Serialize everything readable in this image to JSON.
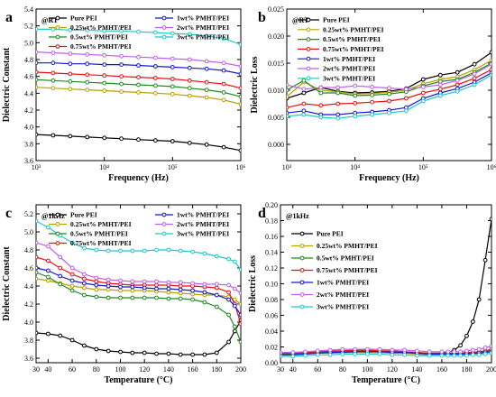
{
  "colors": {
    "pure": "#000000",
    "w025": "#b8a000",
    "w05": "#1f8a1f",
    "w075": "#e81010",
    "w1": "#1515d6",
    "w2": "#c060e8",
    "w3": "#20c8c8"
  },
  "chart_data": [
    {
      "panel": "a",
      "type": "line",
      "condition": "@RT",
      "xlabel": "Frequency (Hz)",
      "ylabel": "Dielectric Constant",
      "xscale": "log",
      "xlim": [
        1000,
        1000000
      ],
      "ylim": [
        3.6,
        5.4
      ],
      "xticks": [
        1000,
        10000,
        100000,
        1000000
      ],
      "xtick_labels": [
        "10³",
        "10⁴",
        "10⁵",
        "10⁶"
      ],
      "yticks": [
        3.6,
        3.8,
        4.0,
        4.2,
        4.4,
        4.6,
        4.8,
        5.0,
        5.2,
        5.4
      ],
      "ytick_labels": [
        "3.6",
        "3.8",
        "4.0",
        "4.2",
        "4.4",
        "4.6",
        "4.8",
        "5.0",
        "5.2",
        "5.4"
      ],
      "legend": "top, two columns",
      "grid": false,
      "x": [
        1000,
        1778,
        3162,
        5623,
        10000,
        17783,
        31623,
        56234,
        100000,
        177828,
        316228,
        562341,
        1000000
      ],
      "series": [
        {
          "name": "Pure PEI",
          "color_key": "pure",
          "values": [
            3.91,
            3.9,
            3.89,
            3.88,
            3.87,
            3.86,
            3.85,
            3.84,
            3.83,
            3.81,
            3.79,
            3.76,
            3.72
          ]
        },
        {
          "name": "0.25wt% PMHT/PEI",
          "color_key": "w025",
          "values": [
            4.47,
            4.46,
            4.45,
            4.44,
            4.43,
            4.42,
            4.41,
            4.4,
            4.39,
            4.37,
            4.35,
            4.32,
            4.27
          ]
        },
        {
          "name": "0.5wt% PMHT/PEI",
          "color_key": "w05",
          "values": [
            4.56,
            4.55,
            4.54,
            4.53,
            4.52,
            4.51,
            4.5,
            4.49,
            4.48,
            4.46,
            4.44,
            4.41,
            4.36
          ]
        },
        {
          "name": "0.75wt% PMHT/PEI",
          "color_key": "w075",
          "values": [
            4.65,
            4.64,
            4.63,
            4.62,
            4.61,
            4.6,
            4.59,
            4.58,
            4.57,
            4.55,
            4.53,
            4.51,
            4.46
          ]
        },
        {
          "name": "1wt% PMHT/PEI",
          "color_key": "w1",
          "values": [
            4.76,
            4.76,
            4.75,
            4.75,
            4.74,
            4.74,
            4.73,
            4.72,
            4.71,
            4.7,
            4.69,
            4.67,
            4.63
          ]
        },
        {
          "name": "2wt% PMHT/PEI",
          "color_key": "w2",
          "values": [
            4.89,
            4.88,
            4.87,
            4.86,
            4.85,
            4.84,
            4.83,
            4.82,
            4.81,
            4.8,
            4.78,
            4.76,
            4.72
          ]
        },
        {
          "name": "3wt% PMHT/PEI",
          "color_key": "w3",
          "values": [
            5.16,
            5.16,
            5.15,
            5.15,
            5.14,
            5.14,
            5.13,
            5.12,
            5.11,
            5.1,
            5.08,
            5.05,
            4.98
          ]
        }
      ]
    },
    {
      "panel": "b",
      "type": "line",
      "condition": "@RT",
      "xlabel": "Frequency (Hz)",
      "ylabel": "Dielectric Loss",
      "xscale": "log",
      "xlim": [
        1000,
        1000000
      ],
      "ylim": [
        -0.003,
        0.025
      ],
      "xticks": [
        1000,
        10000,
        100000,
        1000000
      ],
      "xtick_labels": [
        "10³",
        "10⁴",
        "10⁵",
        "10⁶"
      ],
      "yticks": [
        0,
        0.005,
        0.01,
        0.015,
        0.02,
        0.025
      ],
      "ytick_labels": [
        "0.000",
        "0.005",
        "0.010",
        "0.015",
        "0.020",
        "0.025"
      ],
      "legend": "top, one column",
      "grid": false,
      "x": [
        1000,
        1778,
        3162,
        5623,
        10000,
        17783,
        31623,
        56234,
        100000,
        177828,
        316228,
        562341,
        1000000
      ],
      "series": [
        {
          "name": "Pure PEI",
          "color_key": "pure",
          "values": [
            0.0085,
            0.0095,
            0.0105,
            0.0098,
            0.0095,
            0.0096,
            0.0098,
            0.0103,
            0.012,
            0.0128,
            0.0133,
            0.0148,
            0.017
          ]
        },
        {
          "name": "0.25wt% PMHT/PEI",
          "color_key": "w025",
          "values": [
            0.0088,
            0.0115,
            0.01,
            0.0097,
            0.0093,
            0.0094,
            0.0096,
            0.01,
            0.0112,
            0.012,
            0.0125,
            0.0138,
            0.0155
          ]
        },
        {
          "name": "0.5wt% PMHT/PEI",
          "color_key": "w05",
          "values": [
            0.01,
            0.0118,
            0.0095,
            0.0095,
            0.009,
            0.0091,
            0.0093,
            0.0097,
            0.0108,
            0.0116,
            0.012,
            0.0133,
            0.015
          ]
        },
        {
          "name": "0.75wt% PMHT/PEI",
          "color_key": "w075",
          "values": [
            0.0068,
            0.0075,
            0.0072,
            0.0075,
            0.0076,
            0.0078,
            0.008,
            0.0085,
            0.0095,
            0.0102,
            0.011,
            0.0122,
            0.0138
          ]
        },
        {
          "name": "1wt% PMHT/PEI",
          "color_key": "w1",
          "values": [
            0.0058,
            0.0062,
            0.0055,
            0.0055,
            0.0058,
            0.006,
            0.0063,
            0.0068,
            0.0085,
            0.0095,
            0.0103,
            0.0115,
            0.0132
          ]
        },
        {
          "name": "2wt% PMHT/PEI",
          "color_key": "w2",
          "values": [
            0.011,
            0.0102,
            0.0105,
            0.0105,
            0.0108,
            0.0106,
            0.0104,
            0.0102,
            0.0106,
            0.011,
            0.0118,
            0.013,
            0.0148
          ]
        },
        {
          "name": "3wt% PMHT/PEI",
          "color_key": "w3",
          "values": [
            0.0052,
            0.0055,
            0.005,
            0.0048,
            0.0052,
            0.0055,
            0.0058,
            0.0062,
            0.008,
            0.009,
            0.0098,
            0.011,
            0.0128
          ]
        }
      ]
    },
    {
      "panel": "c",
      "type": "line",
      "condition": "@1kHz",
      "xlabel": "Temperature (°C)",
      "ylabel": "Dielectric Constant",
      "xlim": [
        30,
        200
      ],
      "ylim": [
        3.55,
        5.3
      ],
      "xticks": [
        30,
        40,
        60,
        80,
        100,
        120,
        140,
        160,
        180,
        200
      ],
      "xtick_labels": [
        "30",
        "40",
        "60",
        "80",
        "100",
        "120",
        "140",
        "160",
        "180",
        "200"
      ],
      "yticks": [
        3.6,
        3.8,
        4.0,
        4.2,
        4.4,
        4.6,
        4.8,
        5.0,
        5.2
      ],
      "ytick_labels": [
        "3.6",
        "3.8",
        "4.0",
        "4.2",
        "4.4",
        "4.6",
        "4.8",
        "5.0",
        "5.2"
      ],
      "legend": "top, two columns",
      "grid": false,
      "x": [
        30,
        40,
        50,
        60,
        70,
        80,
        90,
        100,
        110,
        120,
        130,
        140,
        150,
        160,
        170,
        180,
        190,
        195,
        200
      ],
      "series": [
        {
          "name": "Pure PEI",
          "color_key": "pure",
          "values": [
            3.88,
            3.87,
            3.85,
            3.8,
            3.74,
            3.7,
            3.68,
            3.67,
            3.66,
            3.66,
            3.65,
            3.65,
            3.64,
            3.64,
            3.64,
            3.66,
            3.78,
            3.9,
            4.02
          ]
        },
        {
          "name": "0.25wt% PMHT/PEI",
          "color_key": "w025",
          "values": [
            4.48,
            4.46,
            4.43,
            4.4,
            4.38,
            4.36,
            4.36,
            4.35,
            4.35,
            4.35,
            4.34,
            4.33,
            4.32,
            4.31,
            4.3,
            4.3,
            4.28,
            4.25,
            4.2
          ]
        },
        {
          "name": "0.5wt% PMHT/PEI",
          "color_key": "w05",
          "values": [
            4.55,
            4.5,
            4.42,
            4.35,
            4.3,
            4.28,
            4.27,
            4.27,
            4.27,
            4.27,
            4.27,
            4.26,
            4.26,
            4.25,
            4.22,
            4.17,
            4.08,
            3.95,
            3.78
          ]
        },
        {
          "name": "0.75wt% PMHT/PEI",
          "color_key": "w075",
          "values": [
            4.72,
            4.68,
            4.6,
            4.53,
            4.48,
            4.45,
            4.43,
            4.42,
            4.41,
            4.41,
            4.41,
            4.41,
            4.4,
            4.4,
            4.39,
            4.38,
            4.33,
            4.2,
            3.98
          ]
        },
        {
          "name": "1wt% PMHT/PEI",
          "color_key": "w1",
          "values": [
            4.6,
            4.57,
            4.51,
            4.46,
            4.43,
            4.41,
            4.4,
            4.39,
            4.39,
            4.38,
            4.37,
            4.37,
            4.36,
            4.35,
            4.33,
            4.3,
            4.25,
            4.18,
            4.08
          ]
        },
        {
          "name": "2wt% PMHT/PEI",
          "color_key": "w2",
          "values": [
            4.88,
            4.84,
            4.72,
            4.6,
            4.53,
            4.49,
            4.47,
            4.46,
            4.45,
            4.45,
            4.45,
            4.44,
            4.44,
            4.43,
            4.42,
            4.42,
            4.41,
            4.37,
            4.32
          ]
        },
        {
          "name": "3wt% PMHT/PEI",
          "color_key": "w3",
          "values": [
            5.12,
            5.05,
            4.96,
            4.88,
            4.82,
            4.8,
            4.79,
            4.79,
            4.79,
            4.79,
            4.8,
            4.8,
            4.79,
            4.78,
            4.76,
            4.73,
            4.7,
            4.67,
            4.58
          ]
        }
      ]
    },
    {
      "panel": "d",
      "type": "line",
      "condition": "@1kHz",
      "xlabel": "Temperature (°C)",
      "ylabel": "Dielectric Loss",
      "xlim": [
        30,
        200
      ],
      "ylim": [
        0,
        0.2
      ],
      "xticks": [
        30,
        40,
        60,
        80,
        100,
        120,
        140,
        160,
        180,
        200
      ],
      "xtick_labels": [
        "30",
        "40",
        "60",
        "80",
        "100",
        "120",
        "140",
        "160",
        "180",
        "200"
      ],
      "yticks": [
        0,
        0.02,
        0.04,
        0.06,
        0.08,
        0.1,
        0.12,
        0.14,
        0.16,
        0.18,
        0.2
      ],
      "ytick_labels": [
        "0.00",
        "0.02",
        "0.04",
        "0.06",
        "0.08",
        "0.10",
        "0.12",
        "0.14",
        "0.16",
        "0.18",
        "0.20"
      ],
      "legend": "top-left, one column",
      "grid": false,
      "x": [
        30,
        40,
        50,
        60,
        70,
        80,
        90,
        100,
        110,
        120,
        130,
        140,
        150,
        160,
        165,
        170,
        175,
        180,
        185,
        190,
        195,
        200
      ],
      "series": [
        {
          "name": "Pure PEI",
          "color_key": "pure",
          "values": [
            0.012,
            0.012,
            0.013,
            0.013,
            0.014,
            0.014,
            0.014,
            0.014,
            0.013,
            0.013,
            0.013,
            0.012,
            0.012,
            0.012,
            0.013,
            0.016,
            0.022,
            0.034,
            0.052,
            0.08,
            0.13,
            0.182
          ]
        },
        {
          "name": "0.25wt% PMHT/PEI",
          "color_key": "w025",
          "values": [
            0.01,
            0.01,
            0.011,
            0.012,
            0.012,
            0.013,
            0.013,
            0.013,
            0.013,
            0.012,
            0.012,
            0.011,
            0.01,
            0.01,
            0.01,
            0.01,
            0.01,
            0.011,
            0.011,
            0.012,
            0.013,
            0.015
          ]
        },
        {
          "name": "0.5wt% PMHT/PEI",
          "color_key": "w05",
          "values": [
            0.011,
            0.011,
            0.012,
            0.013,
            0.014,
            0.014,
            0.015,
            0.015,
            0.014,
            0.014,
            0.013,
            0.012,
            0.011,
            0.011,
            0.011,
            0.011,
            0.011,
            0.012,
            0.012,
            0.013,
            0.014,
            0.016
          ]
        },
        {
          "name": "0.75wt% PMHT/PEI",
          "color_key": "w075",
          "values": [
            0.012,
            0.012,
            0.013,
            0.014,
            0.015,
            0.015,
            0.016,
            0.016,
            0.015,
            0.015,
            0.014,
            0.013,
            0.012,
            0.012,
            0.012,
            0.012,
            0.012,
            0.013,
            0.013,
            0.014,
            0.015,
            0.017
          ]
        },
        {
          "name": "1wt% PMHT/PEI",
          "color_key": "w1",
          "values": [
            0.01,
            0.01,
            0.011,
            0.012,
            0.013,
            0.013,
            0.014,
            0.014,
            0.014,
            0.013,
            0.013,
            0.012,
            0.011,
            0.011,
            0.011,
            0.011,
            0.011,
            0.011,
            0.012,
            0.012,
            0.013,
            0.014
          ]
        },
        {
          "name": "2wt% PMHT/PEI",
          "color_key": "w2",
          "values": [
            0.013,
            0.013,
            0.014,
            0.015,
            0.016,
            0.017,
            0.017,
            0.017,
            0.017,
            0.016,
            0.016,
            0.015,
            0.014,
            0.014,
            0.014,
            0.014,
            0.014,
            0.015,
            0.016,
            0.017,
            0.019,
            0.021
          ]
        },
        {
          "name": "3wt% PMHT/PEI",
          "color_key": "w3",
          "values": [
            0.008,
            0.008,
            0.009,
            0.01,
            0.01,
            0.011,
            0.011,
            0.011,
            0.011,
            0.01,
            0.01,
            0.009,
            0.009,
            0.009,
            0.009,
            0.009,
            0.009,
            0.009,
            0.01,
            0.01,
            0.011,
            0.012
          ]
        }
      ]
    }
  ]
}
